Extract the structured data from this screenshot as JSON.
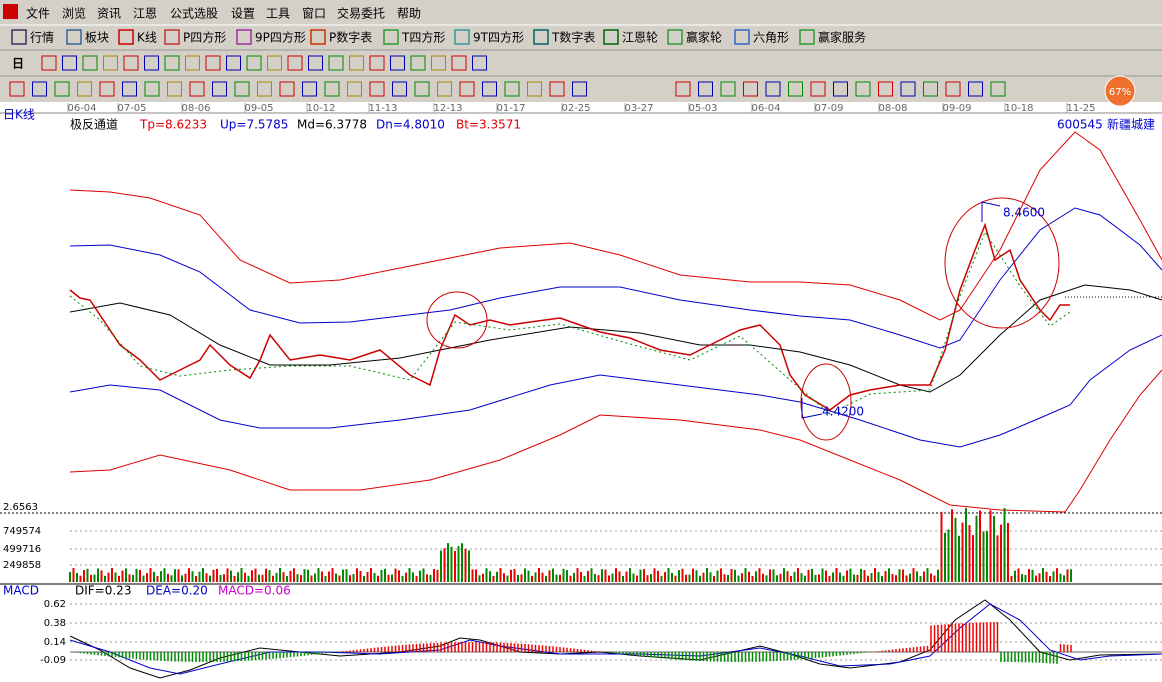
{
  "menu": [
    "文件",
    "浏览",
    "资讯",
    "江恩",
    "公式选股",
    "设置",
    "工具",
    "窗口",
    "交易委托",
    "帮助"
  ],
  "toolbar": [
    "行情",
    "板块",
    "K线",
    "P四方形",
    "9P四方形",
    "P数字表",
    "T四方形",
    "9T四方形",
    "T数字表",
    "江恩轮",
    "赢家轮",
    "六角形",
    "赢家服务"
  ],
  "period_button": "日",
  "badge": "67%",
  "chart": {
    "period_label": "日K线",
    "dates": [
      "06-04",
      "07-05",
      "08-06",
      "09-05",
      "10-12",
      "11-13",
      "12-13",
      "01-17",
      "02-25",
      "03-27",
      "05-03",
      "06-04",
      "07-09",
      "08-08",
      "09-09",
      "10-18",
      "11-25"
    ],
    "indicator": {
      "name": "极反通道",
      "tp": "Tp=8.6233",
      "up": "Up=7.5785",
      "md": "Md=6.3778",
      "dn": "Dn=4.8010",
      "bt": "Bt=3.3571"
    },
    "code": "600545",
    "stock": "新疆城建",
    "annotations": [
      "8.4600",
      "4.4200"
    ],
    "price_label": "2.6563",
    "volume_labels": [
      "749574",
      "499716",
      "249858"
    ],
    "macd": {
      "name": "MACD",
      "dif": "DIF=0.23",
      "dea": "DEA=0.20",
      "macd": "MACD=0.06",
      "labels": [
        "0.62",
        "0.38",
        "0.14",
        "-0.09"
      ]
    }
  }
}
